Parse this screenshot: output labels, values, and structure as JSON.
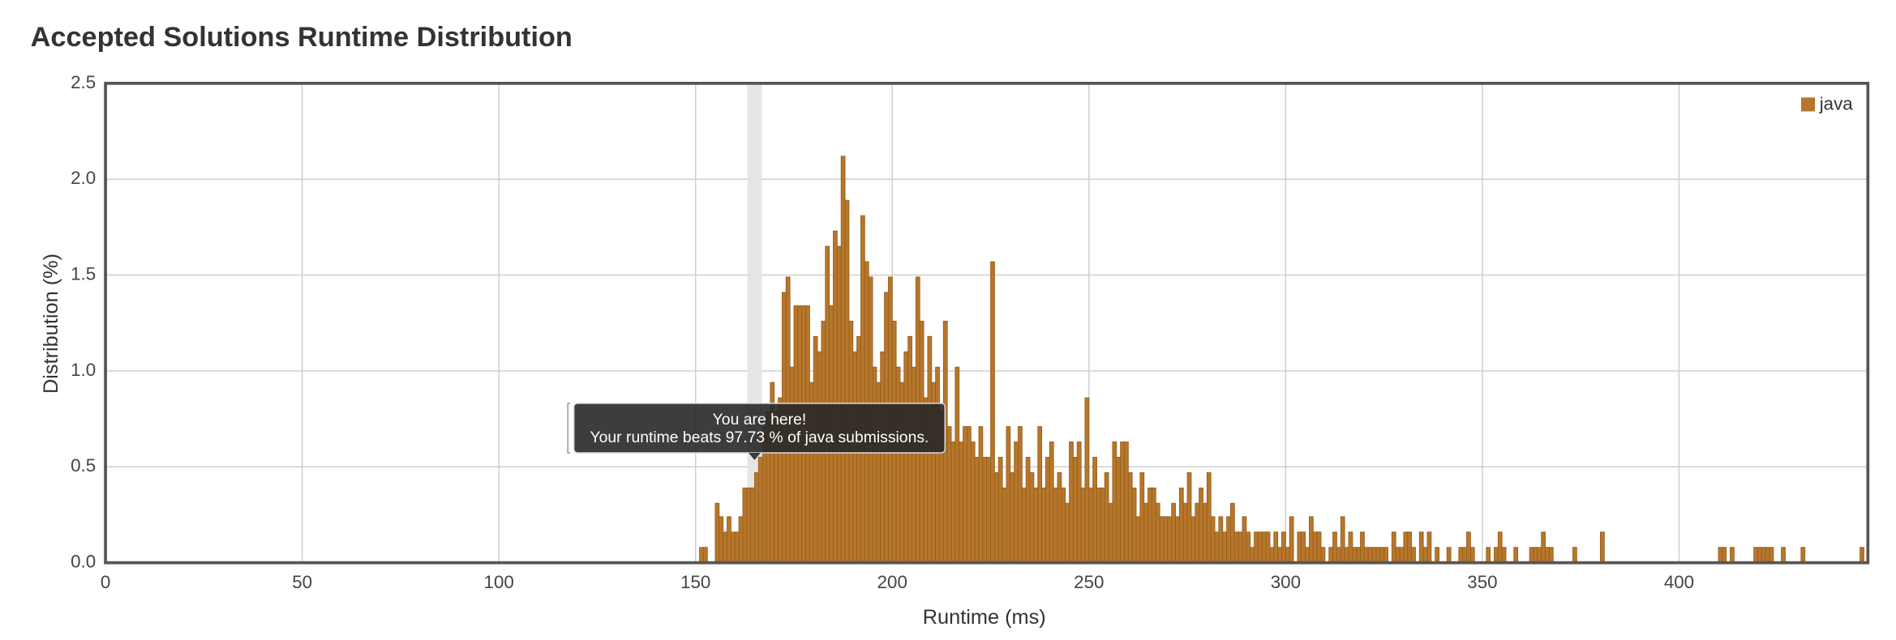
{
  "chart_data": {
    "type": "histogram",
    "title": "Accepted Solutions Runtime Distribution",
    "xlabel": "Runtime (ms)",
    "ylabel": "Distribution (%)",
    "series": [
      {
        "name": "java",
        "color": "#b6772c",
        "bins": [
          151,
          152,
          153,
          154,
          155,
          156,
          157,
          158,
          159,
          160,
          161,
          162,
          163,
          164,
          165,
          166,
          167,
          168,
          169,
          170,
          171,
          172,
          173,
          174,
          175,
          176,
          177,
          178,
          179,
          180,
          181,
          182,
          183,
          184,
          185,
          186,
          187,
          188,
          189,
          190,
          191,
          192,
          193,
          194,
          195,
          196,
          197,
          198,
          199,
          200,
          201,
          202,
          203,
          204,
          205,
          206,
          207,
          208,
          209,
          210,
          211,
          212,
          213,
          214,
          215,
          216,
          217,
          218,
          219,
          220,
          221,
          222,
          223,
          224,
          225,
          226,
          227,
          228,
          229,
          230,
          231,
          232,
          233,
          234,
          235,
          236,
          237,
          238,
          239,
          240,
          241,
          242,
          243,
          244,
          245,
          246,
          247,
          248,
          249,
          250,
          251,
          252,
          253,
          254,
          255,
          256,
          257,
          258,
          259,
          260,
          261,
          262,
          263,
          264,
          265,
          266,
          267,
          268,
          269,
          270,
          271,
          272,
          273,
          274,
          275,
          276,
          277,
          278,
          279,
          280,
          281,
          282,
          283,
          284,
          285,
          286,
          287,
          288,
          289,
          290,
          291,
          292,
          293,
          294,
          295,
          296,
          297,
          298,
          299,
          300,
          301,
          302,
          303,
          304,
          305,
          306,
          307,
          308,
          309,
          310,
          311,
          312,
          313,
          314,
          315,
          316,
          317,
          318,
          319,
          320,
          321,
          322,
          323,
          324,
          325,
          326,
          327,
          328,
          329,
          330,
          331,
          332,
          333,
          334,
          335,
          336,
          337,
          338,
          339,
          340,
          341,
          342,
          343,
          344,
          345,
          346,
          347,
          348,
          349,
          350,
          351,
          352,
          353,
          354,
          355,
          356,
          357,
          358,
          359,
          360,
          361,
          362,
          363,
          364,
          365,
          366,
          367,
          368,
          369,
          370,
          371,
          372,
          373,
          374,
          375,
          376,
          377,
          378,
          379,
          380,
          381,
          382,
          383,
          384,
          385,
          386,
          387,
          388,
          389,
          390,
          391,
          392,
          393,
          394,
          395,
          396,
          397,
          398,
          399,
          400,
          401,
          402,
          403,
          404,
          405,
          406,
          407,
          408,
          409,
          410,
          411,
          412,
          413,
          414,
          415,
          416,
          417,
          418,
          419,
          420,
          421,
          422,
          423,
          424,
          425,
          426,
          427,
          428,
          429,
          430,
          431,
          432,
          433,
          434,
          435,
          436,
          437,
          438,
          439,
          440,
          441,
          442,
          443,
          444,
          445,
          446,
          447
        ],
        "values": [
          0.08,
          0.08,
          0,
          0,
          0.31,
          0.24,
          0.16,
          0.24,
          0.16,
          0.16,
          0.24,
          0.39,
          0.39,
          0.39,
          0.47,
          0.55,
          0.71,
          0.79,
          0.94,
          0.79,
          0.86,
          1.41,
          1.49,
          1.02,
          1.34,
          1.34,
          1.34,
          1.34,
          0.94,
          1.18,
          1.1,
          1.26,
          1.65,
          1.34,
          1.73,
          1.65,
          2.12,
          1.89,
          1.26,
          1.1,
          1.18,
          1.81,
          1.57,
          1.49,
          1.02,
          0.94,
          1.1,
          1.41,
          1.49,
          1.26,
          1.02,
          0.94,
          1.1,
          1.18,
          1.02,
          1.49,
          1.26,
          0.86,
          1.18,
          0.94,
          1.02,
          0.79,
          1.26,
          0.71,
          0.63,
          1.02,
          0.63,
          0.71,
          0.71,
          0.63,
          0.55,
          0.71,
          0.55,
          0.55,
          1.57,
          0.47,
          0.55,
          0.39,
          0.71,
          0.47,
          0.63,
          0.71,
          0.39,
          0.55,
          0.47,
          0.39,
          0.71,
          0.39,
          0.55,
          0.63,
          0.39,
          0.47,
          0.39,
          0.31,
          0.63,
          0.55,
          0.63,
          0.39,
          0.86,
          0.39,
          0.55,
          0.39,
          0.39,
          0.47,
          0.31,
          0.63,
          0.55,
          0.63,
          0.63,
          0.47,
          0.39,
          0.24,
          0.47,
          0.31,
          0.39,
          0.39,
          0.31,
          0.24,
          0.24,
          0.24,
          0.31,
          0.24,
          0.39,
          0.31,
          0.47,
          0.24,
          0.31,
          0.39,
          0.31,
          0.47,
          0.24,
          0.16,
          0.24,
          0.16,
          0.24,
          0.31,
          0.16,
          0.16,
          0.24,
          0.16,
          0.08,
          0.16,
          0.16,
          0.16,
          0.16,
          0.08,
          0.16,
          0.08,
          0.16,
          0.08,
          0.24,
          0,
          0.16,
          0.16,
          0.08,
          0.24,
          0.16,
          0.16,
          0.08,
          0,
          0.08,
          0.16,
          0.08,
          0.24,
          0.08,
          0.16,
          0.08,
          0.08,
          0.16,
          0.08,
          0.08,
          0.08,
          0.08,
          0.08,
          0.08,
          0,
          0.16,
          0.08,
          0.08,
          0.16,
          0.16,
          0.08,
          0,
          0.16,
          0.08,
          0.16,
          0,
          0.08,
          0,
          0,
          0.08,
          0,
          0,
          0.08,
          0.08,
          0.16,
          0.08,
          0,
          0,
          0,
          0.08,
          0,
          0.08,
          0.16,
          0.08,
          0,
          0,
          0.08,
          0,
          0,
          0,
          0.08,
          0.08,
          0.08,
          0.16,
          0.08,
          0.08,
          0,
          0,
          0,
          0,
          0,
          0.08,
          0,
          0,
          0,
          0,
          0,
          0,
          0.16,
          0,
          0,
          0,
          0,
          0,
          0,
          0,
          0,
          0,
          0,
          0,
          0,
          0,
          0,
          0,
          0,
          0,
          0,
          0,
          0,
          0,
          0,
          0,
          0,
          0,
          0,
          0,
          0,
          0,
          0.08,
          0.08,
          0,
          0.08,
          0,
          0,
          0,
          0,
          0,
          0.08,
          0.08,
          0.08,
          0.08,
          0.08,
          0,
          0,
          0.08,
          0,
          0,
          0,
          0,
          0.08,
          0,
          0,
          0,
          0,
          0,
          0,
          0,
          0,
          0,
          0,
          0,
          0,
          0,
          0,
          0.08
        ]
      }
    ],
    "xlim": [
      0,
      448
    ],
    "xticks": [
      0,
      50,
      100,
      150,
      200,
      250,
      300,
      350,
      400
    ],
    "ylim": [
      0,
      2.5
    ],
    "yticks": [
      {
        "value": 0,
        "label": "0.0"
      },
      {
        "value": 0.5,
        "label": "0.5"
      },
      {
        "value": 1,
        "label": "1.0"
      },
      {
        "value": 1.5,
        "label": "1.5"
      },
      {
        "value": 2,
        "label": "2.0"
      },
      {
        "value": 2.5,
        "label": "2.5"
      }
    ],
    "grid": true,
    "legend": "top-right",
    "marker_x": 165,
    "annotation": [
      "You are here!",
      "Your runtime beats 97.73 % of java submissions."
    ]
  }
}
